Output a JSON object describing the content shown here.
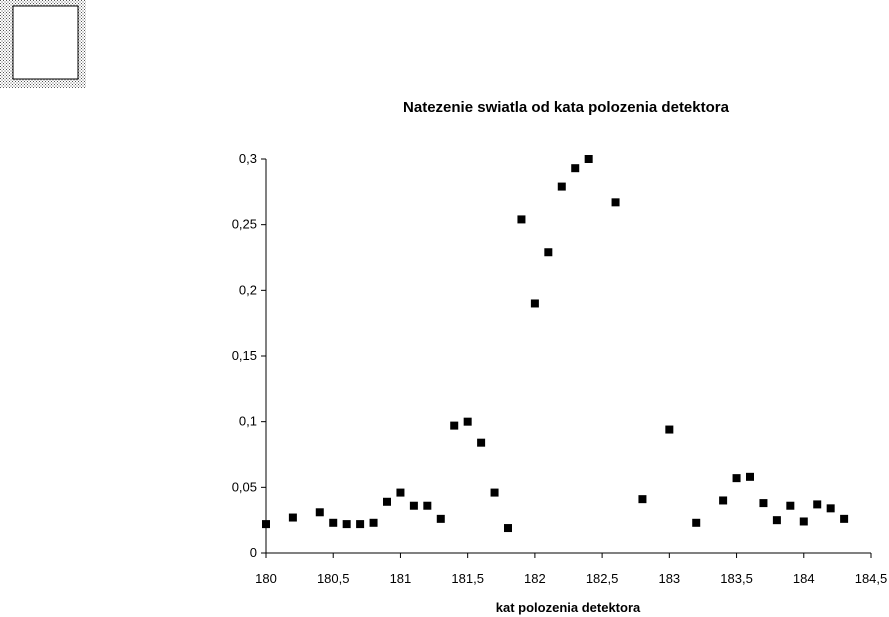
{
  "chart_data": {
    "type": "scatter",
    "title": "Natezenie swiatla od kata polozenia detektora",
    "xlabel": "kat polozenia detektora",
    "ylabel": "",
    "xlim": [
      180,
      184.5
    ],
    "ylim": [
      0,
      0.3
    ],
    "x_ticks": [
      180,
      180.5,
      181,
      181.5,
      182,
      182.5,
      183,
      183.5,
      184,
      184.5
    ],
    "x_tick_labels": [
      "180",
      "180,5",
      "181",
      "181,5",
      "182",
      "182,5",
      "183",
      "183,5",
      "184",
      "184,5"
    ],
    "y_ticks": [
      0,
      0.05,
      0.1,
      0.15,
      0.2,
      0.25,
      0.3
    ],
    "y_tick_labels": [
      "0",
      "0,05",
      "0,1",
      "0,15",
      "0,2",
      "0,25",
      "0,3"
    ],
    "grid": false,
    "legend": "none",
    "marker_color": "#000000",
    "points": [
      {
        "x": 180.0,
        "y": 0.022
      },
      {
        "x": 180.2,
        "y": 0.027
      },
      {
        "x": 180.4,
        "y": 0.031
      },
      {
        "x": 180.5,
        "y": 0.023
      },
      {
        "x": 180.6,
        "y": 0.022
      },
      {
        "x": 180.7,
        "y": 0.022
      },
      {
        "x": 180.8,
        "y": 0.023
      },
      {
        "x": 180.9,
        "y": 0.039
      },
      {
        "x": 181.0,
        "y": 0.046
      },
      {
        "x": 181.1,
        "y": 0.036
      },
      {
        "x": 181.2,
        "y": 0.036
      },
      {
        "x": 181.3,
        "y": 0.026
      },
      {
        "x": 181.4,
        "y": 0.097
      },
      {
        "x": 181.5,
        "y": 0.1
      },
      {
        "x": 181.6,
        "y": 0.084
      },
      {
        "x": 181.7,
        "y": 0.046
      },
      {
        "x": 181.8,
        "y": 0.019
      },
      {
        "x": 181.9,
        "y": 0.254
      },
      {
        "x": 182.0,
        "y": 0.19
      },
      {
        "x": 182.1,
        "y": 0.229
      },
      {
        "x": 182.2,
        "y": 0.279
      },
      {
        "x": 182.3,
        "y": 0.293
      },
      {
        "x": 182.4,
        "y": 0.3
      },
      {
        "x": 182.6,
        "y": 0.267
      },
      {
        "x": 182.8,
        "y": 0.041
      },
      {
        "x": 183.0,
        "y": 0.094
      },
      {
        "x": 183.2,
        "y": 0.023
      },
      {
        "x": 183.4,
        "y": 0.04
      },
      {
        "x": 183.5,
        "y": 0.057
      },
      {
        "x": 183.6,
        "y": 0.058
      },
      {
        "x": 183.7,
        "y": 0.038
      },
      {
        "x": 183.8,
        "y": 0.025
      },
      {
        "x": 183.9,
        "y": 0.036
      },
      {
        "x": 184.0,
        "y": 0.024
      },
      {
        "x": 184.1,
        "y": 0.037
      },
      {
        "x": 184.2,
        "y": 0.034
      },
      {
        "x": 184.3,
        "y": 0.026
      }
    ]
  }
}
